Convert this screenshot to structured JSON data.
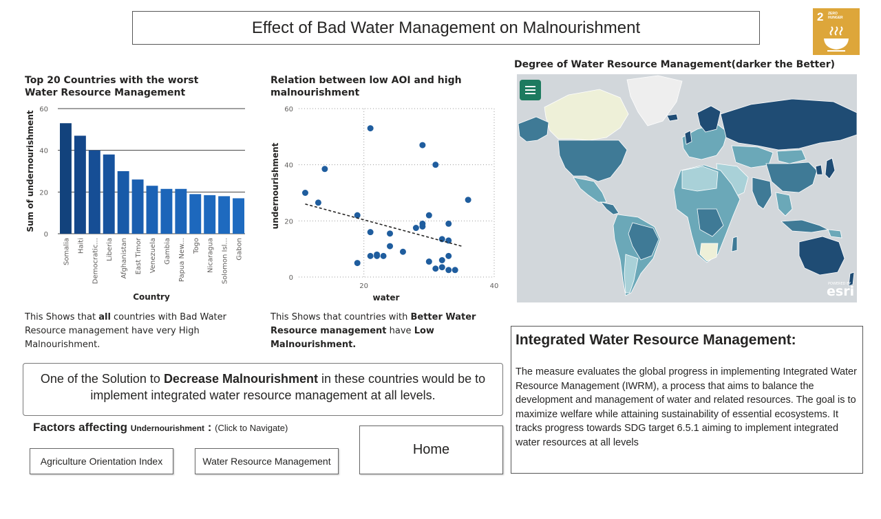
{
  "header": {
    "title": "Effect of Bad Water Management on Malnourishment"
  },
  "sdg_badge": {
    "number": "2",
    "label": "ZERO HUNGER",
    "color": "#DDA63A"
  },
  "chart_data": [
    {
      "type": "bar",
      "title": "Top 20 Countries with the worst Water Resource Management",
      "xlabel": "Country",
      "ylabel": "Sum of undernourishment",
      "ylim": [
        0,
        60
      ],
      "yticks": [
        "0",
        "20",
        "40",
        "60"
      ],
      "grid": true,
      "categories": [
        "Somalia",
        "Haiti",
        "Democratic...",
        "Liberia",
        "Afghanistan",
        "East Timor",
        "Venezuela",
        "Gambia",
        "Papua New...",
        "Togo",
        "Nicaragua",
        "Solomon Isl...",
        "Gabon"
      ],
      "values": [
        53,
        47,
        40,
        38,
        30,
        26,
        23,
        21.5,
        21.5,
        19,
        18.5,
        18,
        17
      ],
      "colors": [
        "#12427c",
        "#14478a",
        "#164e95",
        "#17539e",
        "#185aa8",
        "#1a5eaf",
        "#1b62b5",
        "#1c65b9",
        "#1c65b9",
        "#1d68bd",
        "#1d69be",
        "#1e6abf",
        "#1e6bc0"
      ]
    },
    {
      "type": "scatter",
      "title": "Relation between low AOI and high malnourishment",
      "xlabel": "water",
      "ylabel": "undernourishment",
      "xlim": [
        10,
        40
      ],
      "ylim": [
        0,
        60
      ],
      "xticks": [
        "20",
        "40"
      ],
      "yticks": [
        "0",
        "20",
        "40",
        "60"
      ],
      "grid": true,
      "trendline": true,
      "point_color": "#1f5d9e",
      "points": [
        {
          "x": 11,
          "y": 30
        },
        {
          "x": 13,
          "y": 26.5
        },
        {
          "x": 14,
          "y": 38.5
        },
        {
          "x": 21,
          "y": 53
        },
        {
          "x": 19,
          "y": 22
        },
        {
          "x": 21,
          "y": 16
        },
        {
          "x": 24,
          "y": 15.5
        },
        {
          "x": 29,
          "y": 47
        },
        {
          "x": 31,
          "y": 40
        },
        {
          "x": 36,
          "y": 27.5
        },
        {
          "x": 30,
          "y": 22
        },
        {
          "x": 29,
          "y": 19
        },
        {
          "x": 28,
          "y": 17.5
        },
        {
          "x": 29,
          "y": 18
        },
        {
          "x": 33,
          "y": 19
        },
        {
          "x": 32,
          "y": 13.5
        },
        {
          "x": 33,
          "y": 13
        },
        {
          "x": 24,
          "y": 11
        },
        {
          "x": 26,
          "y": 9
        },
        {
          "x": 21,
          "y": 7.5
        },
        {
          "x": 22,
          "y": 8
        },
        {
          "x": 22,
          "y": 7.5
        },
        {
          "x": 23,
          "y": 7.5
        },
        {
          "x": 19,
          "y": 5
        },
        {
          "x": 30,
          "y": 5.5
        },
        {
          "x": 32,
          "y": 6
        },
        {
          "x": 33,
          "y": 7.5
        },
        {
          "x": 31,
          "y": 3
        },
        {
          "x": 32,
          "y": 3.5
        },
        {
          "x": 33,
          "y": 2.5
        },
        {
          "x": 34,
          "y": 2.5
        }
      ],
      "trend": [
        {
          "x": 11,
          "y": 26
        },
        {
          "x": 35,
          "y": 11
        }
      ]
    }
  ],
  "notes": {
    "bar_pre": "This Shows that ",
    "bar_bold": "all",
    "bar_post": " countries with Bad Water Resource management have very High Malnourishment.",
    "scatter_pre": "This Shows that countries with ",
    "scatter_bold1": "Better Water Resource management",
    "scatter_mid": " have ",
    "scatter_bold2": "Low Malnourishment."
  },
  "solution": {
    "pre": "One of the Solution to ",
    "bold": "Decrease Malnourishment",
    "post": " in these countries would be to implement integrated water resource management at all levels."
  },
  "factors": {
    "title": "Factors affecting ",
    "subject": "Undernourishment",
    "colon": " : ",
    "hint": "(Click to Navigate)"
  },
  "buttons": {
    "aoi": "Agriculture Orientation Index",
    "water": "Water Resource Management",
    "home": "Home"
  },
  "map": {
    "title": "Degree of Water Resource Management(darker the Better)",
    "watermark": "esri",
    "watermark_small": "POWERED BY",
    "ocean_color": "#d2d7db",
    "palette": [
      "#eef0d8",
      "#a9d1d8",
      "#6ba8b8",
      "#3f7a96",
      "#1f4c74"
    ]
  },
  "iwrm": {
    "title": "Integrated Water Resource Management:",
    "body": "The measure evaluates the global progress in implementing Integrated Water Resource Management (IWRM), a process that aims to balance the development and management of water and related resources. The goal is to maximize welfare while attaining sustainability of essential ecosystems. It tracks progress towards SDG target 6.5.1 aiming to implement integrated water resources at all levels"
  }
}
